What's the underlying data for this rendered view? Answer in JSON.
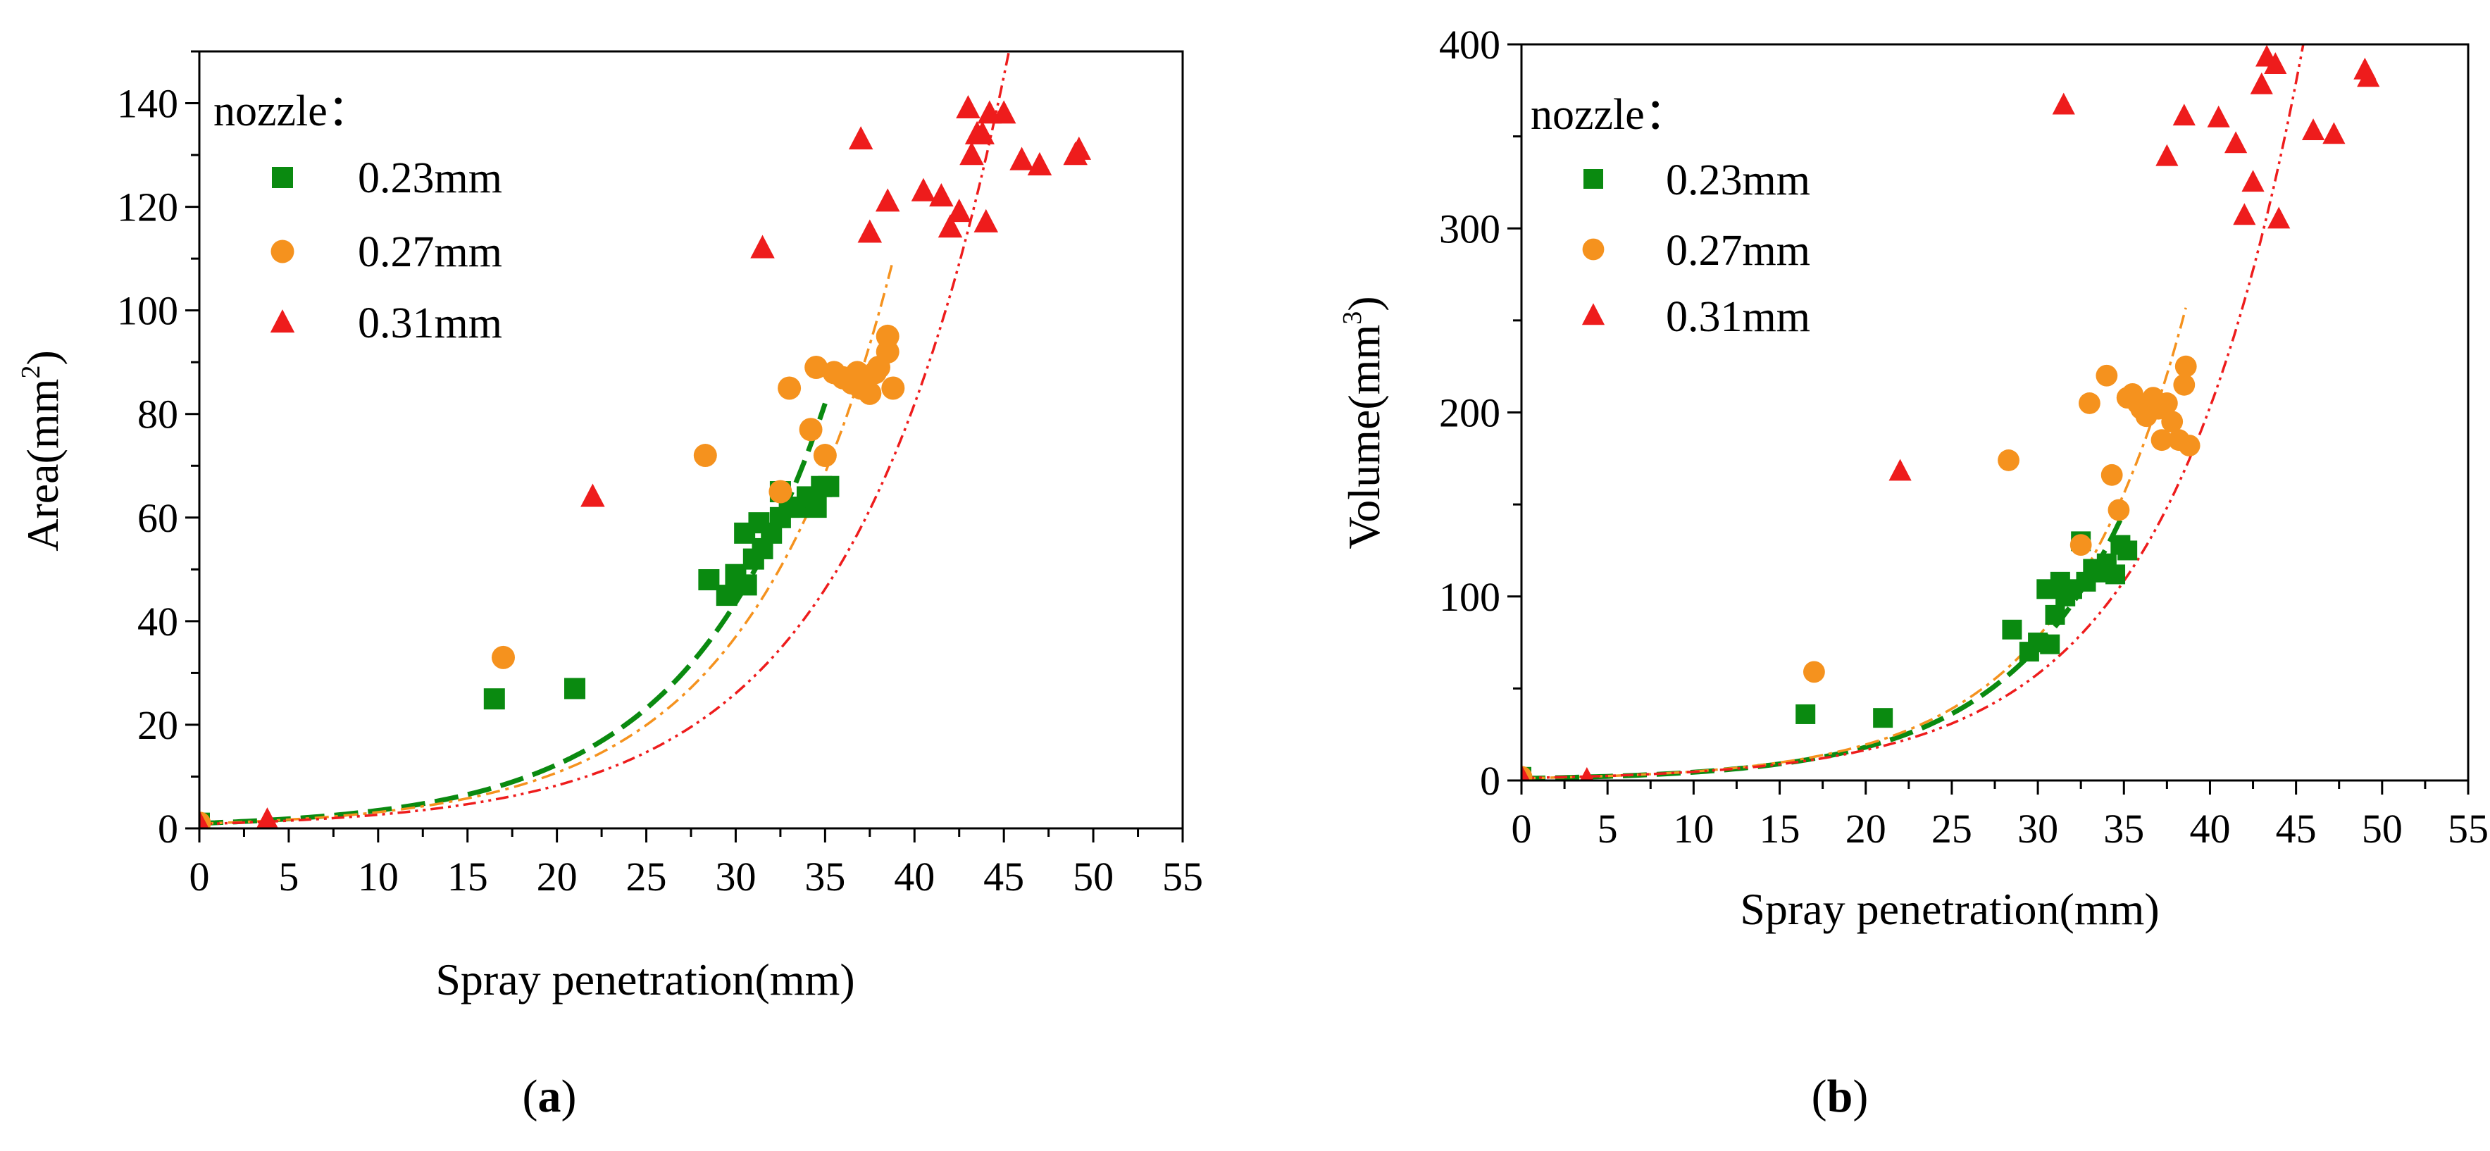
{
  "figure": {
    "panels": [
      {
        "id": "a",
        "label_open": "(",
        "label_letter": "a",
        "label_close": ")"
      },
      {
        "id": "b",
        "label_open": "(",
        "label_letter": "b",
        "label_close": ")"
      }
    ]
  },
  "legend": {
    "title": "nozzle：",
    "entries": [
      "0.23mm",
      "0.27mm",
      "0.31mm"
    ]
  },
  "colors": {
    "n023": "#0a8a10",
    "n027": "#f5921e",
    "n031": "#ee1c1c"
  },
  "chart_data": [
    {
      "type": "scatter",
      "panel": "a",
      "title": "",
      "xlabel": "Spray penetration(mm)",
      "ylabel_text": "Area(mm",
      "ylabel_sup": "2",
      "ylabel_close": ")",
      "xlim": [
        0,
        55
      ],
      "ylim": [
        0,
        150
      ],
      "xticks": [
        0,
        5,
        10,
        15,
        20,
        25,
        30,
        35,
        40,
        45,
        50,
        55
      ],
      "yticks": [
        0,
        20,
        40,
        60,
        80,
        100,
        120,
        140
      ],
      "grid": false,
      "legend_position": "top-left",
      "series": [
        {
          "name": "0.23mm",
          "marker": "square",
          "points": [
            [
              0,
              1
            ],
            [
              16.5,
              25
            ],
            [
              21,
              27
            ],
            [
              28.5,
              48
            ],
            [
              29.5,
              45
            ],
            [
              30,
              49
            ],
            [
              30.5,
              57
            ],
            [
              30.6,
              47
            ],
            [
              31,
              52
            ],
            [
              31.3,
              59
            ],
            [
              31.5,
              54
            ],
            [
              32,
              57
            ],
            [
              32.5,
              60
            ],
            [
              32.5,
              65
            ],
            [
              33,
              62
            ],
            [
              33.5,
              62
            ],
            [
              34,
              64
            ],
            [
              34.5,
              62
            ],
            [
              34.8,
              66
            ],
            [
              35.2,
              66
            ]
          ],
          "fit": {
            "a": 0.98,
            "b": 0.1265,
            "x_range": [
              0,
              35
            ],
            "style": "dashed"
          }
        },
        {
          "name": "0.27mm",
          "marker": "circle",
          "points": [
            [
              0,
              1
            ],
            [
              17,
              33
            ],
            [
              28.3,
              72
            ],
            [
              32.5,
              65
            ],
            [
              33,
              85
            ],
            [
              34.2,
              77
            ],
            [
              34.5,
              89
            ],
            [
              35,
              72
            ],
            [
              35.5,
              88
            ],
            [
              36,
              87
            ],
            [
              36.5,
              86
            ],
            [
              36.8,
              88
            ],
            [
              37,
              85
            ],
            [
              37.2,
              87
            ],
            [
              37.5,
              84
            ],
            [
              37.8,
              88
            ],
            [
              38,
              89
            ],
            [
              38.5,
              92
            ],
            [
              38.5,
              95
            ],
            [
              38.8,
              85
            ]
          ],
          "fit": {
            "a": 0.91,
            "b": 0.1235,
            "x_range": [
              0,
              38.8
            ],
            "style": "dash-dot"
          }
        },
        {
          "name": "0.31mm",
          "marker": "triangle",
          "points": [
            [
              0,
              1
            ],
            [
              3.8,
              1.5
            ],
            [
              22,
              64
            ],
            [
              31.5,
              112
            ],
            [
              37,
              133
            ],
            [
              37.5,
              115
            ],
            [
              38.5,
              121
            ],
            [
              40.5,
              123
            ],
            [
              41.5,
              122
            ],
            [
              42,
              116
            ],
            [
              42.5,
              119
            ],
            [
              43,
              139
            ],
            [
              43.2,
              130
            ],
            [
              43.5,
              134
            ],
            [
              43.8,
              134
            ],
            [
              44,
              117
            ],
            [
              44.2,
              138
            ],
            [
              45,
              138
            ],
            [
              46,
              129
            ],
            [
              47,
              128
            ],
            [
              49,
              130
            ],
            [
              49.2,
              131
            ]
          ],
          "fit": {
            "a": 0.84,
            "b": 0.1145,
            "x_range": [
              0,
              46
            ],
            "style": "dash-dot-dot"
          }
        }
      ]
    },
    {
      "type": "scatter",
      "panel": "b",
      "title": "",
      "xlabel": "Spray penetration(mm)",
      "ylabel_text": "Volume(mm",
      "ylabel_sup": "3",
      "ylabel_close": ")",
      "xlim": [
        0,
        55
      ],
      "ylim": [
        0,
        400
      ],
      "xticks": [
        0,
        5,
        10,
        15,
        20,
        25,
        30,
        35,
        40,
        45,
        50,
        55
      ],
      "yticks": [
        0,
        100,
        200,
        300,
        400
      ],
      "grid": false,
      "legend_position": "top-left",
      "series": [
        {
          "name": "0.23mm",
          "marker": "square",
          "points": [
            [
              0,
              2
            ],
            [
              16.5,
              36
            ],
            [
              21,
              34
            ],
            [
              28.5,
              82
            ],
            [
              29.5,
              70
            ],
            [
              30,
              75
            ],
            [
              30.5,
              104
            ],
            [
              30.7,
              74
            ],
            [
              31,
              90
            ],
            [
              31.3,
              108
            ],
            [
              31.6,
              100
            ],
            [
              32,
              104
            ],
            [
              32.5,
              130
            ],
            [
              32.8,
              108
            ],
            [
              33.2,
              115
            ],
            [
              33.5,
              113
            ],
            [
              34,
              118
            ],
            [
              34.5,
              112
            ],
            [
              34.8,
              128
            ],
            [
              35.2,
              125
            ]
          ],
          "fit": {
            "a": 1.12,
            "b": 0.1391,
            "x_range": [
              0,
              35
            ],
            "style": "dashed"
          }
        },
        {
          "name": "0.27mm",
          "marker": "circle",
          "points": [
            [
              0,
              2
            ],
            [
              17,
              59
            ],
            [
              28.3,
              174
            ],
            [
              32.5,
              128
            ],
            [
              33,
              205
            ],
            [
              34,
              220
            ],
            [
              34.3,
              166
            ],
            [
              34.7,
              147
            ],
            [
              35.2,
              208
            ],
            [
              35.5,
              210
            ],
            [
              35.8,
              205
            ],
            [
              36,
              202
            ],
            [
              36.3,
              198
            ],
            [
              36.7,
              208
            ],
            [
              37,
              202
            ],
            [
              37.2,
              185
            ],
            [
              37.5,
              205
            ],
            [
              37.8,
              195
            ],
            [
              38.2,
              185
            ],
            [
              38.5,
              215
            ],
            [
              38.6,
              225
            ],
            [
              38.8,
              182
            ]
          ],
          "fit": {
            "a": 1.22,
            "b": 0.1386,
            "x_range": [
              0,
              38.6
            ],
            "style": "dash-dot"
          }
        },
        {
          "name": "0.31mm",
          "marker": "triangle",
          "points": [
            [
              0,
              2
            ],
            [
              3.8,
              0.5
            ],
            [
              22,
              168
            ],
            [
              31.5,
              367
            ],
            [
              37.5,
              339
            ],
            [
              38.5,
              361
            ],
            [
              40.5,
              360
            ],
            [
              41.5,
              346
            ],
            [
              42,
              307
            ],
            [
              42.5,
              325
            ],
            [
              43,
              378
            ],
            [
              43.3,
              393
            ],
            [
              43.8,
              389
            ],
            [
              44,
              305
            ],
            [
              46,
              353
            ],
            [
              47.2,
              351
            ],
            [
              49,
              386
            ],
            [
              49.2,
              382
            ]
          ],
          "fit": {
            "a": 1.35,
            "b": 0.1253,
            "x_range": [
              0,
              46
            ],
            "style": "dash-dot-dot"
          }
        }
      ]
    }
  ]
}
